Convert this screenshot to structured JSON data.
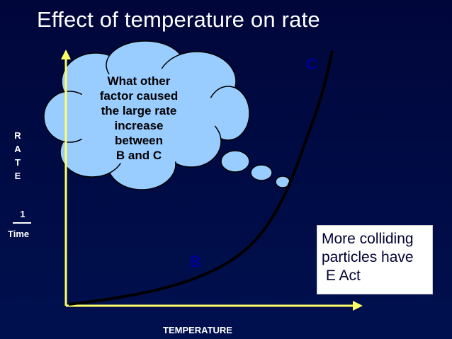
{
  "title": "Effect of temperature on rate",
  "y_axis_letters": [
    "R",
    "A",
    "T",
    "E"
  ],
  "y_axis_fraction": {
    "numerator": "1",
    "denominator": "Time"
  },
  "x_axis_label": "TEMPERATURE",
  "points": {
    "b": "B",
    "c": "C"
  },
  "thought_bubble": {
    "lines": [
      "What other",
      "factor caused",
      "the large rate",
      "increase",
      "between",
      "B and C"
    ]
  },
  "info_box": {
    "lines": [
      "More colliding",
      "particles have",
      " E Act"
    ]
  },
  "colors": {
    "background": "#000033",
    "axes": "#ffff66",
    "curve": "#000000",
    "cloud": "#99ccff",
    "label_b": "#000099",
    "label_c": "#000099",
    "text": "#ffffff"
  }
}
